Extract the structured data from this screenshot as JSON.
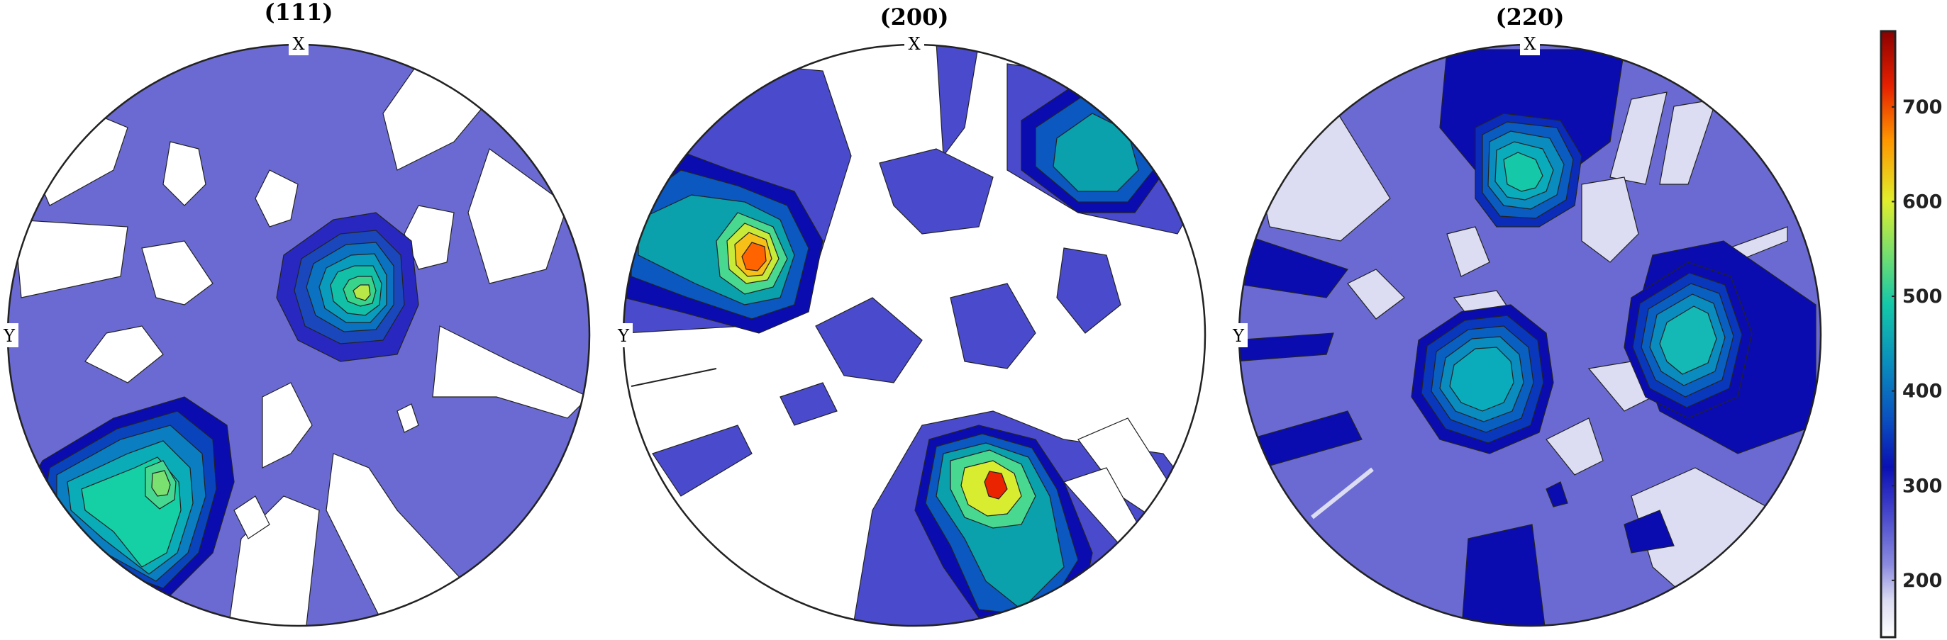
{
  "chart_data": {
    "type": "heatmap",
    "subtype": "pole-figure-contour",
    "titles": [
      "(111)",
      "(200)",
      "(220)"
    ],
    "axis_labels": {
      "top": "X",
      "left": "Y"
    },
    "colorbar": {
      "ticks": [
        200,
        300,
        400,
        500,
        600,
        700
      ],
      "range": [
        140,
        780
      ],
      "colormap": [
        "#ffffff",
        "#dcdcf2",
        "#6a6ad2",
        "#4a4acd",
        "#1c1cb8",
        "#0a58c0",
        "#0aa0a8",
        "#18d8a0",
        "#d8ec30",
        "#fe7a00",
        "#ea2400",
        "#8c0000"
      ]
    },
    "panels": [
      {
        "name": "(111)",
        "background_level": 200,
        "poles": [
          {
            "label": "",
            "pos": [
              0.05,
              -0.18
            ],
            "max": 540
          },
          {
            "label": "",
            "pos": [
              -0.82,
              0.45
            ],
            "max": 510
          }
        ]
      },
      {
        "name": "(200)",
        "background_level": 150,
        "poles": [
          {
            "label": "",
            "pos": [
              -0.53,
              -0.26
            ],
            "max": 740
          },
          {
            "label": "",
            "pos": [
              0.3,
              0.58
            ],
            "max": 720
          },
          {
            "label": "",
            "pos": [
              0.55,
              -0.53
            ],
            "max": 420
          }
        ]
      },
      {
        "name": "(220)",
        "background_level": 240,
        "poles": [
          {
            "label": "",
            "pos": [
              -0.06,
              -0.55
            ],
            "max": 420
          },
          {
            "label": "",
            "pos": [
              -0.2,
              0.17
            ],
            "max": 410
          },
          {
            "label": "",
            "pos": [
              0.55,
              0.02
            ],
            "max": 430
          }
        ]
      }
    ]
  }
}
